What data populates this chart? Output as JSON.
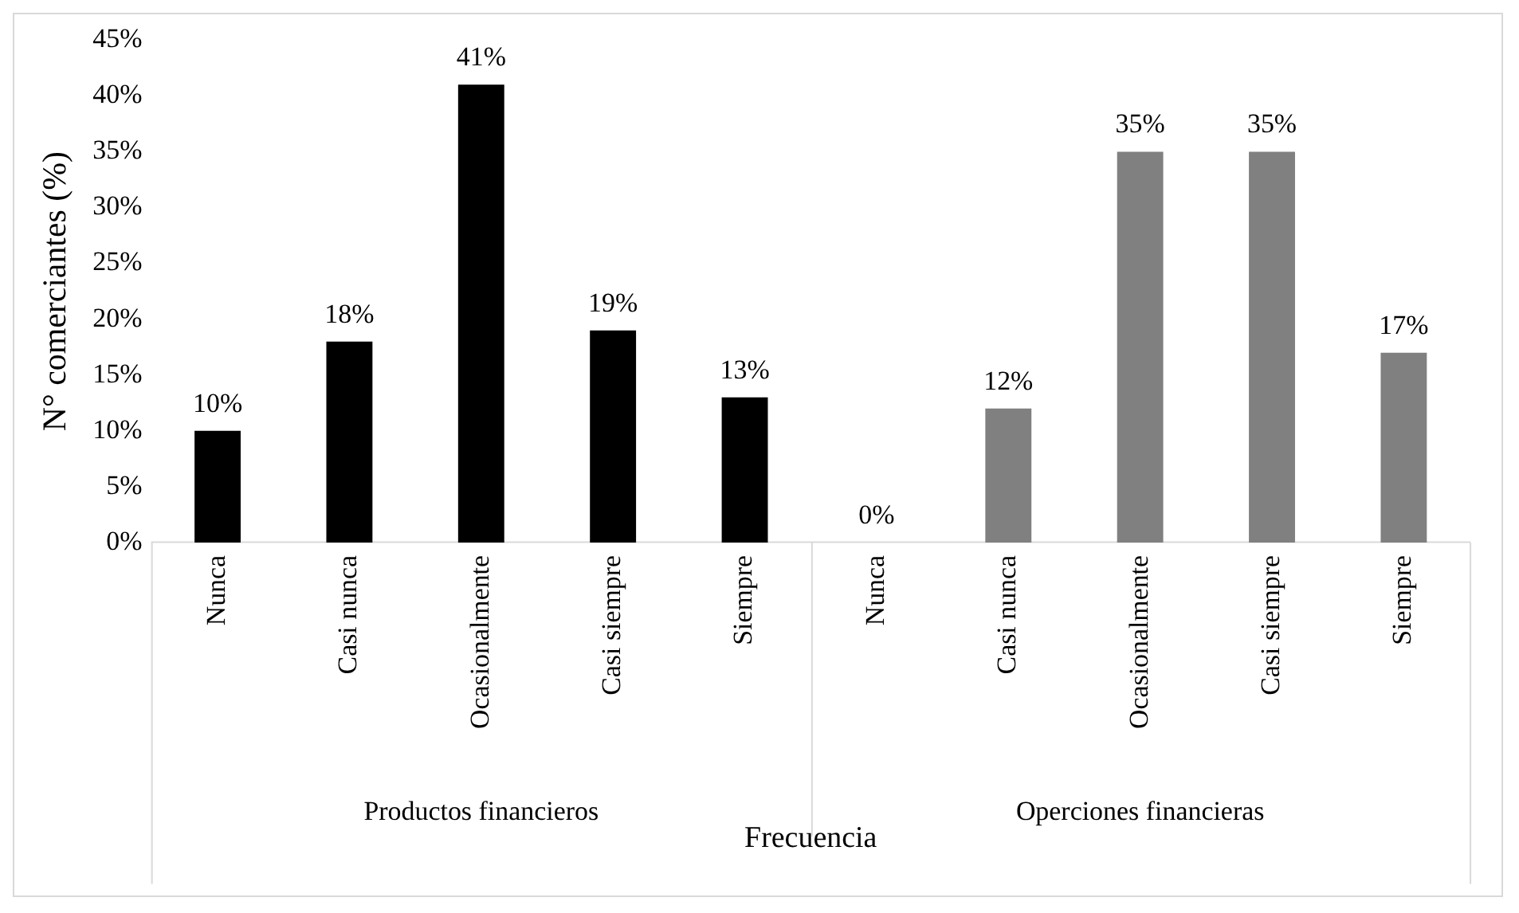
{
  "chart_data": {
    "type": "bar",
    "ylabel": "N° comerciantes (%)",
    "xlabel": "Frecuencia",
    "categories": [
      "Nunca",
      "Casi nunca",
      "Ocasionalmente",
      "Casi siempre",
      "Siempre",
      "Nunca",
      "Casi nunca",
      "Ocasionalmente",
      "Casi siempre",
      "Siempre"
    ],
    "values": [
      10,
      18,
      41,
      19,
      13,
      0,
      12,
      35,
      35,
      17
    ],
    "colors": [
      "#000000",
      "#000000",
      "#000000",
      "#000000",
      "#000000",
      "#808080",
      "#808080",
      "#808080",
      "#808080",
      "#808080"
    ],
    "value_labels": [
      "10%",
      "18%",
      "41%",
      "19%",
      "13%",
      "0%",
      "12%",
      "35%",
      "35%",
      "17%"
    ],
    "ylim": [
      0,
      45
    ],
    "yticks": [
      {
        "value": 0,
        "label": "0%"
      },
      {
        "value": 5,
        "label": "5%"
      },
      {
        "value": 10,
        "label": "10%"
      },
      {
        "value": 15,
        "label": "15%"
      },
      {
        "value": 20,
        "label": "20%"
      },
      {
        "value": 25,
        "label": "25%"
      },
      {
        "value": 30,
        "label": "30%"
      },
      {
        "value": 35,
        "label": "35%"
      },
      {
        "value": 40,
        "label": "40%"
      },
      {
        "value": 45,
        "label": "45%"
      }
    ],
    "grid": false,
    "legend": false,
    "annotations": [
      "Productos financieros",
      "Operciones financieras"
    ]
  }
}
